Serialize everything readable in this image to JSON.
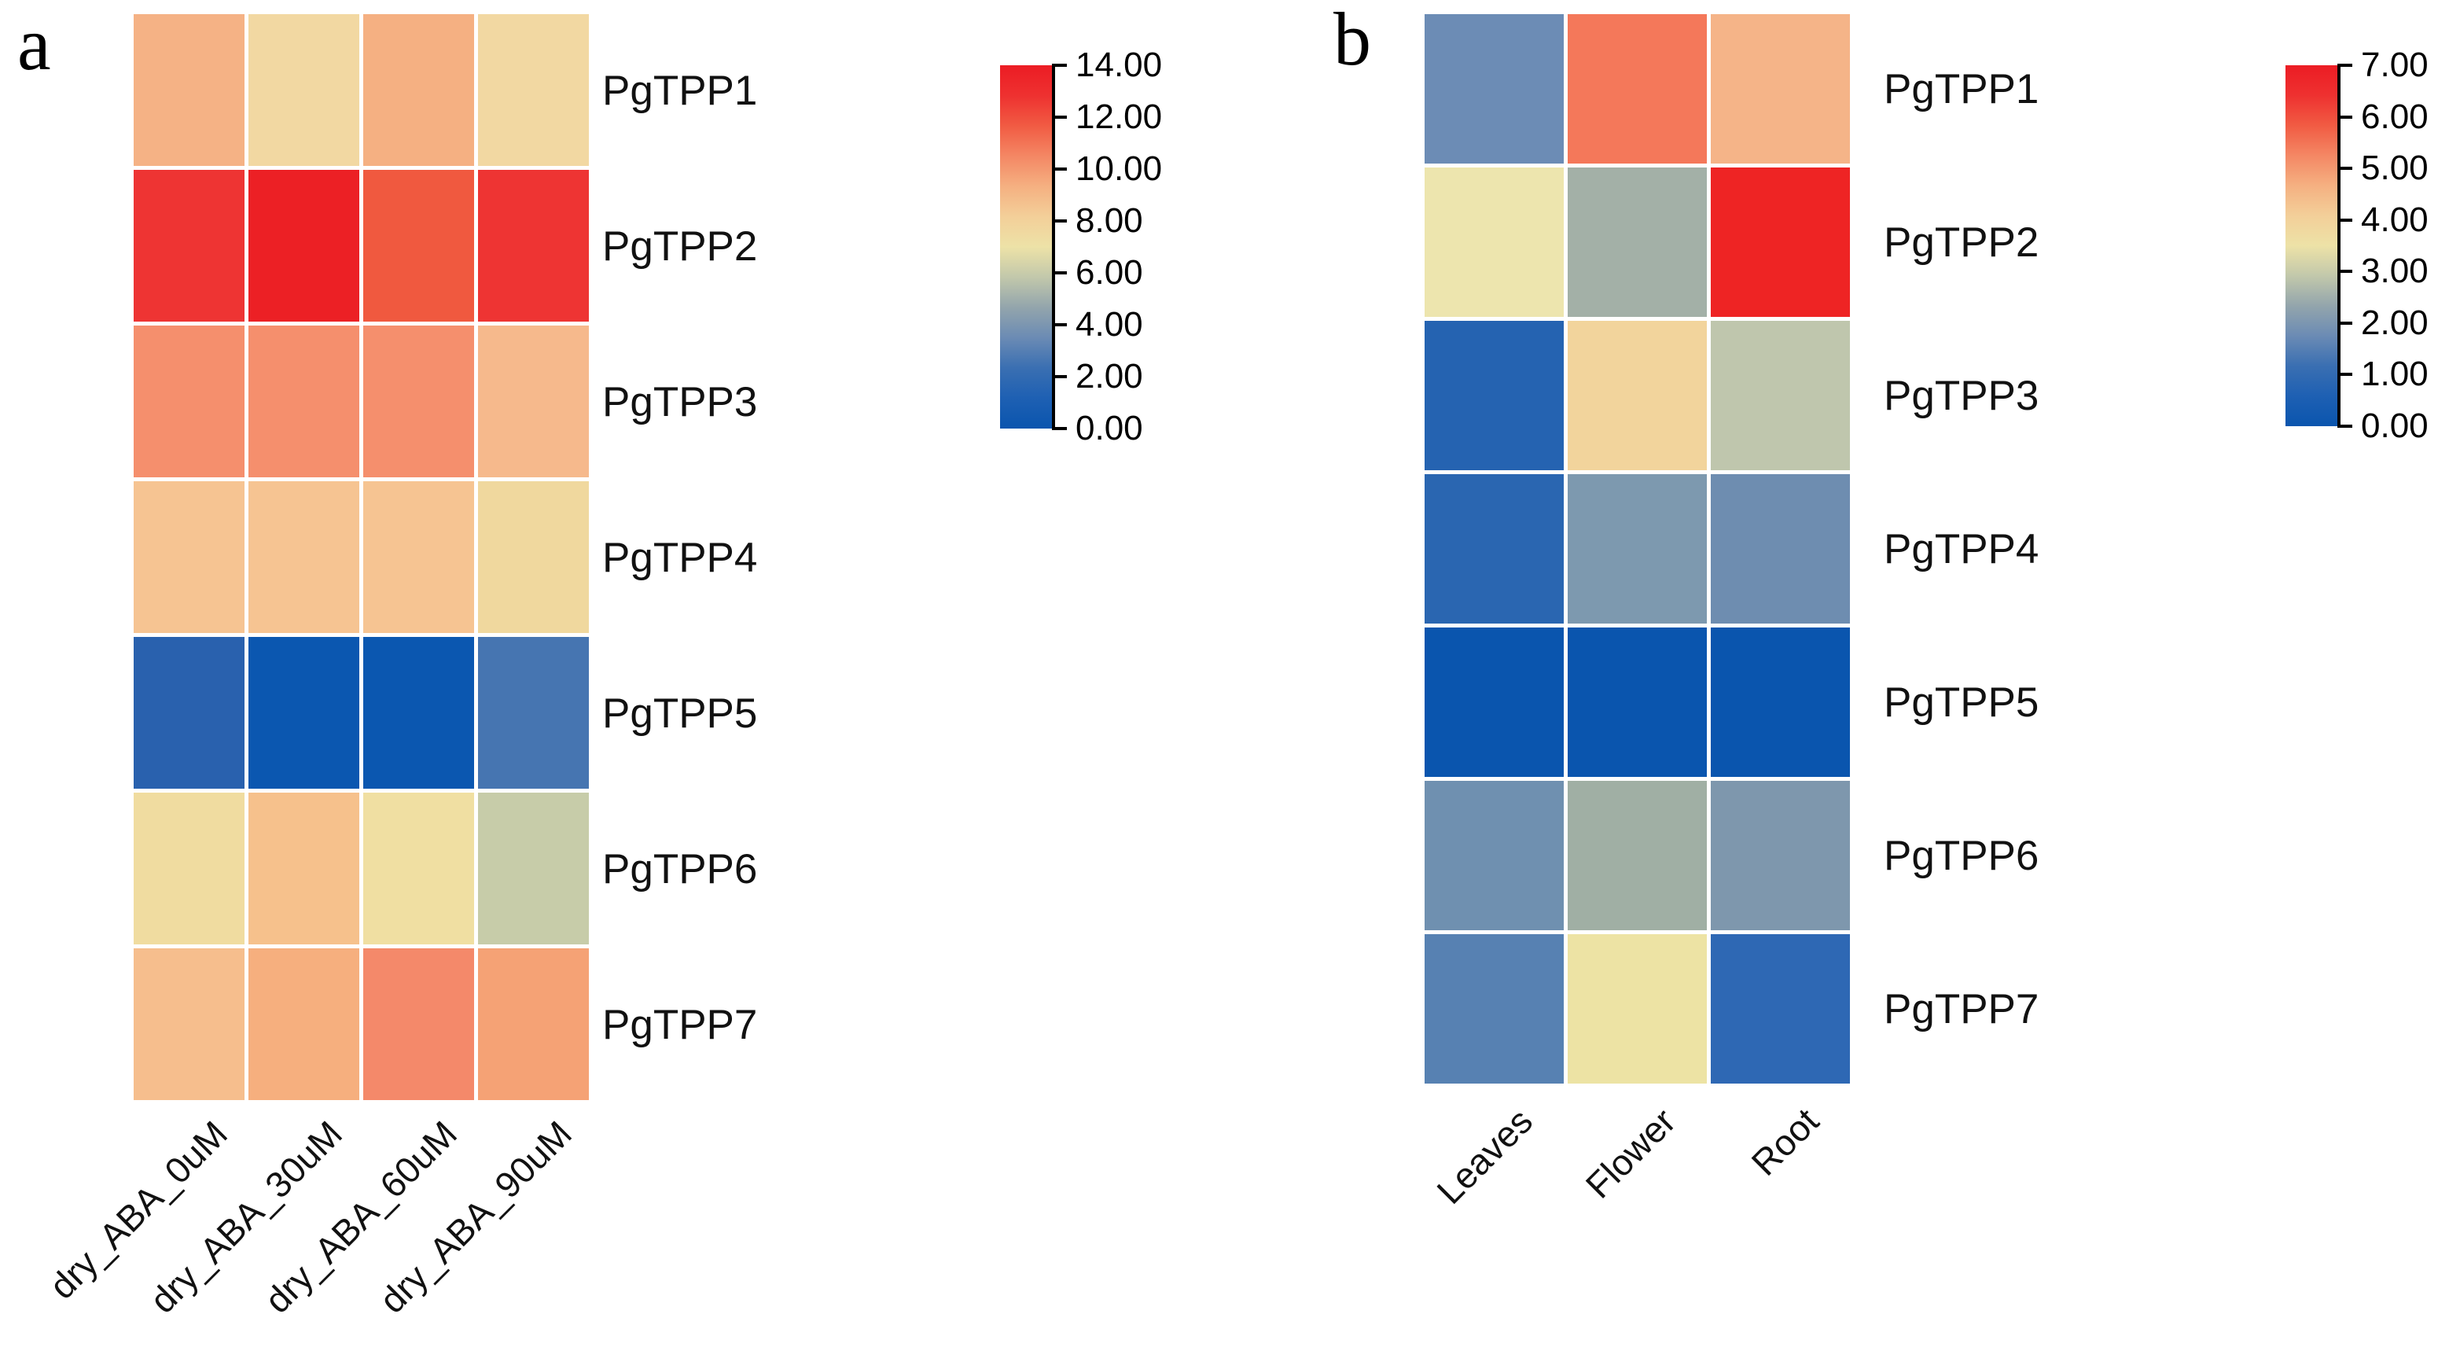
{
  "figure": {
    "background": "#ffffff",
    "text_color": "#111111",
    "colormap_name": "blue-yellow-red-diverging",
    "colormap_gradient_bottom_to_top": [
      "#0A55AE",
      "#1E60B3",
      "#3A6FB2",
      "#6B8BB4",
      "#93A5AC",
      "#C2C8AB",
      "#EDE2A7",
      "#F3CF99",
      "#F5B081",
      "#F48764",
      "#F15B43",
      "#EE3130",
      "#EC1C24"
    ]
  },
  "chart_data": [
    {
      "type": "heatmap",
      "panel_label": "a",
      "rows": [
        "PgTPP1",
        "PgTPP2",
        "PgTPP3",
        "PgTPP4",
        "PgTPP5",
        "PgTPP6",
        "PgTPP7"
      ],
      "columns": [
        "dry_ABA_0uM",
        "dry_ABA_30uM",
        "dry_ABA_60uM",
        "dry_ABA_90uM"
      ],
      "values": [
        [
          8.7,
          7.2,
          8.6,
          7.2
        ],
        [
          12.5,
          13.2,
          11.5,
          12.5
        ],
        [
          10.1,
          10.1,
          10.1,
          9.0
        ],
        [
          8.0,
          8.0,
          8.0,
          7.0
        ],
        [
          1.2,
          0.3,
          0.3,
          1.8
        ],
        [
          6.9,
          7.9,
          6.9,
          5.2
        ],
        [
          8.3,
          8.9,
          10.2,
          9.2
        ]
      ],
      "cell_colors": [
        [
          "#F5B285",
          "#F2D8A2",
          "#F5B082",
          "#F2D8A2"
        ],
        [
          "#EE3433",
          "#EC2025",
          "#F0593F",
          "#EE3433"
        ],
        [
          "#F58F6D",
          "#F58F6D",
          "#F58F6D",
          "#F6B98C"
        ],
        [
          "#F6C492",
          "#F6C492",
          "#F6C492",
          "#F0D89E"
        ],
        [
          "#2961AE",
          "#0B57B0",
          "#0B57B0",
          "#4675B1"
        ],
        [
          "#F0DCA0",
          "#F6C18C",
          "#F0DFA2",
          "#C7CCA9"
        ],
        [
          "#F6BE8D",
          "#F6AF7E",
          "#F4896A",
          "#F5A275"
        ]
      ],
      "colorbar": {
        "position": "right",
        "vmin": 0.0,
        "vmax": 14.0,
        "tick_labels_top_to_bottom": [
          "14.00",
          "12.00",
          "10.00",
          "8.00",
          "6.00",
          "4.00",
          "2.00",
          "0.00"
        ]
      },
      "grid": false
    },
    {
      "type": "heatmap",
      "panel_label": "b",
      "rows": [
        "PgTPP1",
        "PgTPP2",
        "PgTPP3",
        "PgTPP4",
        "PgTPP5",
        "PgTPP6",
        "PgTPP7"
      ],
      "columns": [
        "Leaves",
        "Flower",
        "Root"
      ],
      "values": [
        [
          1.1,
          5.0,
          4.2
        ],
        [
          3.0,
          1.9,
          6.5
        ],
        [
          0.6,
          3.5,
          2.3
        ],
        [
          0.6,
          1.4,
          1.2
        ],
        [
          0.1,
          0.1,
          0.1
        ],
        [
          1.2,
          1.9,
          1.4
        ],
        [
          1.0,
          3.0,
          0.6
        ]
      ],
      "cell_colors": [
        [
          "#6C8CB5",
          "#F4785A",
          "#F5B488"
        ],
        [
          "#EDE5AE",
          "#A3B0A7",
          "#EE2424"
        ],
        [
          "#2563B1",
          "#F2D49C",
          "#BFC6AD"
        ],
        [
          "#2A66B1",
          "#7D99AF",
          "#6E8DB0"
        ],
        [
          "#0A55AE",
          "#0A55AE",
          "#0A55AE"
        ],
        [
          "#6F90B0",
          "#A0AFA4",
          "#7E97AD"
        ],
        [
          "#5781B2",
          "#EDE3A4",
          "#2E68B4"
        ]
      ],
      "colorbar": {
        "position": "right",
        "vmin": 0.0,
        "vmax": 7.0,
        "tick_labels_top_to_bottom": [
          "7.00",
          "6.00",
          "5.00",
          "4.00",
          "3.00",
          "2.00",
          "1.00",
          "0.00"
        ]
      },
      "grid": false
    }
  ]
}
